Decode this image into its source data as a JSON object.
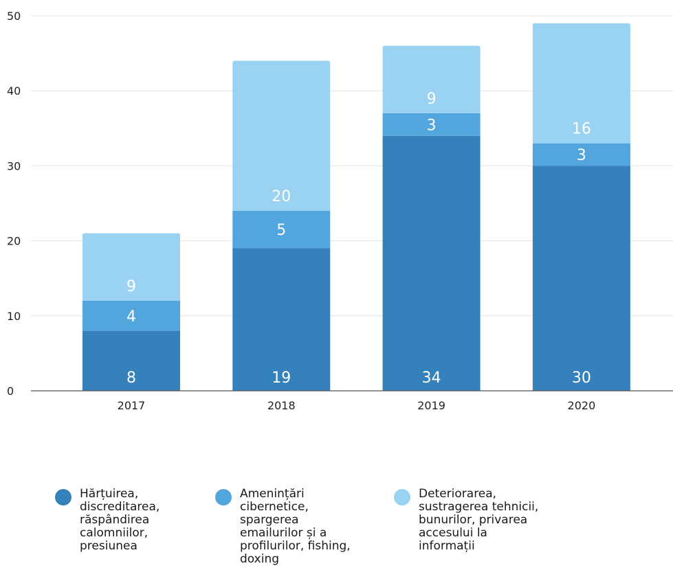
{
  "chart_data": {
    "type": "bar",
    "stacked": true,
    "categories": [
      "2017",
      "2018",
      "2019",
      "2020"
    ],
    "series": [
      {
        "name": "Hărțuirea,\ndiscreditarea,\nrăspândirea\ncalomniilor,\npresiunea",
        "values": [
          8,
          19,
          34,
          30
        ],
        "color": "#3581bb"
      },
      {
        "name": "Amenințări\ncibernetice,\nspargerea\nemailurilor și a\nprofilurilor, fishing,\ndoxing",
        "values": [
          4,
          5,
          3,
          3
        ],
        "color": "#52a5dd"
      },
      {
        "name": "Deteriorarea,\nsustragerea tehnicii,\nbunurilor, privarea\naccesului la\ninformații",
        "values": [
          9,
          20,
          9,
          16
        ],
        "color": "#9ad2f2"
      }
    ],
    "yticks": [
      0,
      10,
      20,
      30,
      40,
      50
    ],
    "ylim": [
      0,
      50
    ],
    "grid": true,
    "legend_position": "bottom",
    "title": "",
    "xlabel": "",
    "ylabel": ""
  }
}
